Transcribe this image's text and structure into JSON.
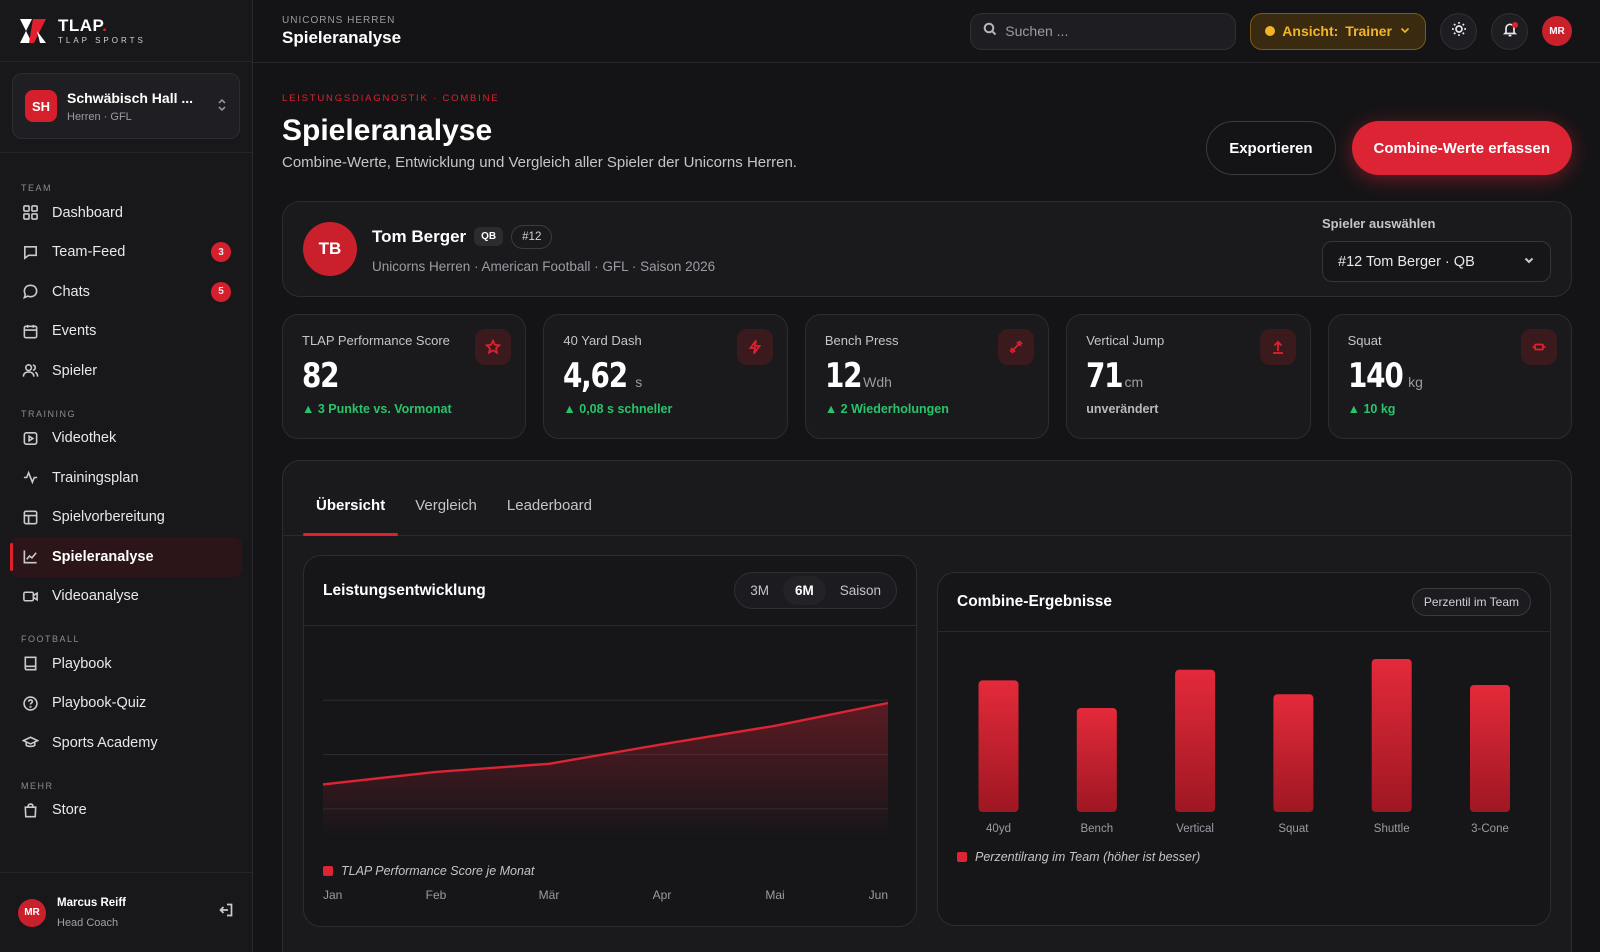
{
  "brand": {
    "name": "TLAP",
    "sub": "TLAP SPORTS"
  },
  "team_switch": {
    "badge": "SH",
    "name": "Schwäbisch Hall ...",
    "meta": "Herren · GFL"
  },
  "nav": {
    "sections": {
      "team": "TEAM",
      "training": "TRAINING",
      "football": "FOOTBALL",
      "more": "MEHR"
    },
    "items": [
      {
        "label": "Dashboard",
        "icon": "grid-icon"
      },
      {
        "label": "Team-Feed",
        "icon": "message-square-icon",
        "count": "3"
      },
      {
        "label": "Chats",
        "icon": "chat-bubble-icon",
        "count": "5"
      },
      {
        "label": "Events",
        "icon": "calendar-icon"
      },
      {
        "label": "Spieler",
        "icon": "users-icon"
      },
      {
        "label": "Videothek",
        "icon": "play-square-icon"
      },
      {
        "label": "Trainingsplan",
        "icon": "activity-icon"
      },
      {
        "label": "Spielvorbereitung",
        "icon": "layout-icon"
      },
      {
        "label": "Spieleranalyse",
        "icon": "line-chart-icon",
        "active": true
      },
      {
        "label": "Videoanalyse",
        "icon": "video-icon"
      },
      {
        "label": "Playbook",
        "icon": "book-icon"
      },
      {
        "label": "Playbook-Quiz",
        "icon": "help-circle-icon"
      },
      {
        "label": "Sports Academy",
        "icon": "graduation-cap-icon"
      },
      {
        "label": "Store",
        "icon": "shopping-bag-icon"
      }
    ]
  },
  "user": {
    "initials": "MR",
    "name": "Marcus Reiff",
    "role": "Head Coach"
  },
  "topbar": {
    "crumb": "UNICORNS HERREN",
    "title": "Spieleranalyse",
    "search_placeholder": "Suchen ...",
    "view_label": "Ansicht:",
    "view_value": "Trainer",
    "avatar": "MR"
  },
  "page": {
    "eyebrow": "LEISTUNGSDIAGNOSTIK · COMBINE",
    "title": "Spieleranalyse",
    "subtitle": "Combine-Werte, Entwicklung und Vergleich aller Spieler der Unicorns Herren.",
    "export_label": "Exportieren",
    "primary_label": "Combine-Werte erfassen"
  },
  "player": {
    "initials": "TB",
    "name": "Tom Berger",
    "position": "QB",
    "number": "#12",
    "meta": "Unicorns Herren · American Football · GFL · Saison 2026",
    "select_label": "Spieler auswählen",
    "select_value": "#12 Tom Berger · QB"
  },
  "kpis": [
    {
      "label": "TLAP Performance Score",
      "value": "82",
      "unit": "",
      "delta": "▲ 3 Punkte vs. Vormonat",
      "trend": "up",
      "icon": "star-icon"
    },
    {
      "label": "40 Yard Dash",
      "value": "4,62",
      "unit": "s",
      "delta": "▲ 0,08 s schneller",
      "trend": "up",
      "icon": "lightning-icon"
    },
    {
      "label": "Bench Press",
      "value": "12",
      "unit": "Wdh",
      "delta": "▲ 2 Wiederholungen",
      "trend": "up",
      "icon": "dumbbell-icon"
    },
    {
      "label": "Vertical Jump",
      "value": "71",
      "unit": "cm",
      "delta": "unverändert",
      "trend": "neutral",
      "icon": "arrow-up-icon"
    },
    {
      "label": "Squat",
      "value": "140",
      "unit": "kg",
      "delta": "▲ 10 kg",
      "trend": "up",
      "icon": "weight-icon"
    }
  ],
  "tabs": [
    "Übersicht",
    "Vergleich",
    "Leaderboard"
  ],
  "line_card": {
    "title": "Leistungsentwicklung",
    "ranges": [
      "3M",
      "6M",
      "Saison"
    ],
    "active_range": "6M"
  },
  "bar_card": {
    "title": "Combine-Ergebnisse",
    "tag": "Perzentil im Team"
  },
  "accent": "#dc2434",
  "chart_data": [
    {
      "type": "area",
      "x": [
        "Jan",
        "Feb",
        "Mär",
        "Apr",
        "Mai",
        "Jun"
      ],
      "series": [
        {
          "name": "TLAP Performance Score je Monat",
          "values": [
            64.5,
            66.8,
            68.3,
            71.9,
            75.3,
            79.5
          ]
        }
      ],
      "ylim": [
        55,
        90
      ],
      "grid": true,
      "legend": "bottom-left"
    },
    {
      "type": "bar",
      "categories": [
        "40yd",
        "Bench",
        "Vertical",
        "Squat",
        "Shuttle",
        "3-Cone"
      ],
      "series": [
        {
          "name": "Perzentilrang im Team (höher ist besser)",
          "values": [
            86,
            68,
            93,
            77,
            100,
            83
          ]
        }
      ],
      "ylim": [
        0,
        100
      ],
      "grid": false,
      "legend": "bottom-left"
    }
  ]
}
